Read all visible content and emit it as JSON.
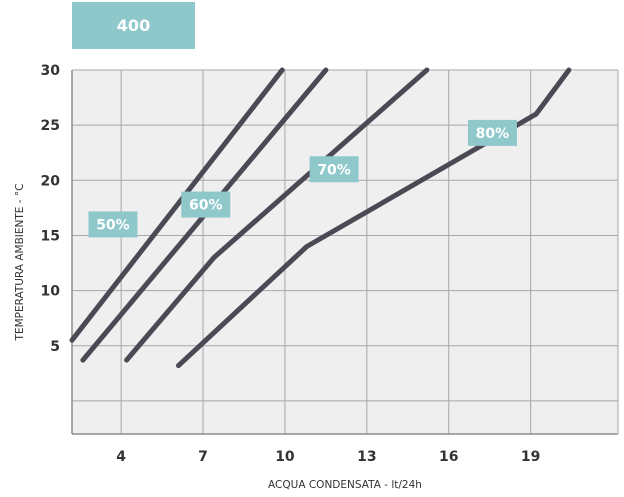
{
  "model_badge": "400",
  "chart_data": {
    "type": "line",
    "title": "",
    "xlabel": "ACQUA CONDENSATA - lt/24h",
    "ylabel": "TEMPERATURA AMBIENTE - °C",
    "xlim": [
      2.2,
      22.2
    ],
    "ylim": [
      -3,
      30
    ],
    "x_ticks": [
      4,
      7,
      10,
      13,
      16,
      19
    ],
    "x_tick_labels": [
      "4",
      "7",
      "10",
      "13",
      "16",
      "19"
    ],
    "y_ticks": [
      5,
      10,
      15,
      20,
      25,
      30
    ],
    "y_tick_labels": [
      "5",
      "10",
      "15",
      "20",
      "25",
      "30"
    ],
    "y_gridlines": [
      0,
      5,
      10,
      15,
      20,
      25,
      30
    ],
    "grid": true,
    "colors": {
      "line": "#4b4a54",
      "label_bg": "#8fc8cb",
      "plot_bg": "#efefef",
      "grid": "#a7a7a7"
    },
    "series": [
      {
        "name": "50%",
        "points": [
          [
            2.2,
            5.5
          ],
          [
            9.9,
            30
          ]
        ],
        "label_at": [
          3.7,
          16
        ]
      },
      {
        "name": "60%",
        "points": [
          [
            2.6,
            3.7
          ],
          [
            11.5,
            30
          ]
        ],
        "label_at": [
          7.1,
          17.8
        ]
      },
      {
        "name": "70%",
        "points": [
          [
            4.2,
            3.7
          ],
          [
            7.4,
            13
          ],
          [
            15.2,
            30
          ]
        ],
        "label_at": [
          11.8,
          21
        ]
      },
      {
        "name": "80%",
        "points": [
          [
            6.1,
            3.2
          ],
          [
            10.8,
            14
          ],
          [
            19.2,
            26
          ],
          [
            20.4,
            30
          ]
        ],
        "label_at": [
          17.6,
          24.3
        ]
      }
    ]
  }
}
